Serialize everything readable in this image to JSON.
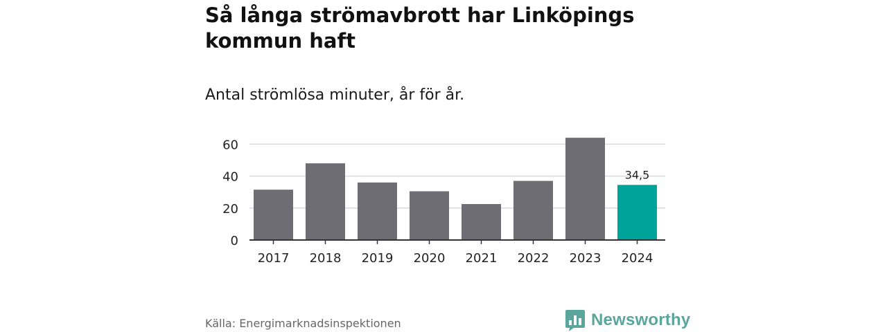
{
  "title": "Så långa strömavbrott har Linköpings kommun haft",
  "subtitle": "Antal strömlösa minuter, år för år.",
  "source": "Källa: Energimarknadsinspektionen",
  "brand": {
    "name": "Newsworthy",
    "logo_icon": "bar-chart-speech-bubble-icon"
  },
  "colors": {
    "bar": "#6d6d73",
    "highlight": "#00a39a",
    "grid": "#d9d9d9",
    "axis": "#333333",
    "brand": "#5aa59c"
  },
  "chart_data": {
    "type": "bar",
    "title": "Så långa strömavbrott har Linköpings kommun haft",
    "subtitle": "Antal strömlösa minuter, år för år.",
    "categories": [
      "2017",
      "2018",
      "2019",
      "2020",
      "2021",
      "2022",
      "2023",
      "2024"
    ],
    "values": [
      31.5,
      48,
      36,
      30.5,
      22.5,
      37,
      64,
      34.5
    ],
    "highlight_index": 7,
    "data_labels": [
      {
        "index": 7,
        "text": "34,5"
      }
    ],
    "yticks": [
      0,
      20,
      40,
      60
    ],
    "ylim": [
      0,
      66
    ],
    "xlabel": "",
    "ylabel": "",
    "grid": true
  }
}
